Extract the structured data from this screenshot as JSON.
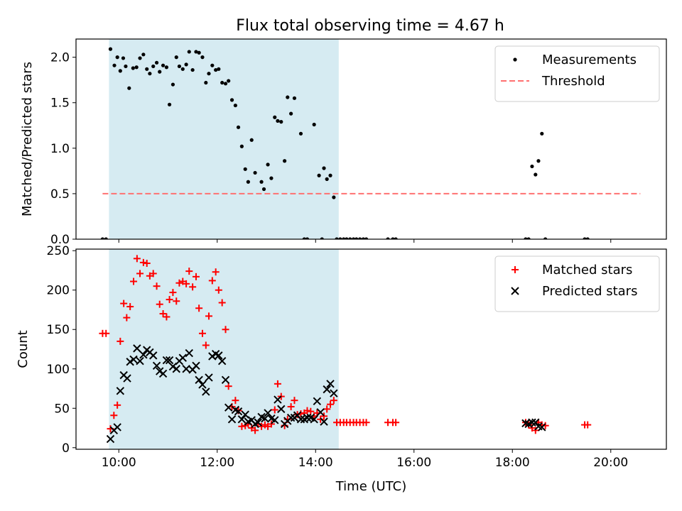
{
  "figure": {
    "title": "Flux total observing time = 4.67 h"
  },
  "chart_data": [
    {
      "type": "scatter",
      "xlabel": "",
      "ylabel": "Matched/Predicted stars",
      "xlim": [
        9.13,
        21.13
      ],
      "ylim": [
        0,
        2.2
      ],
      "yticks": [
        "0.0",
        "0.5",
        "1.0",
        "1.5",
        "2.0"
      ],
      "xticks_labels_visible": false,
      "highlight_span": {
        "x0": 9.8,
        "x1": 14.47,
        "color": "#add8e6"
      },
      "legend": "top-right",
      "threshold": {
        "name": "Threshold",
        "value": 0.5,
        "x_range": [
          9.67,
          20.6
        ],
        "color": "#ff7070",
        "style": "dashed"
      },
      "series": [
        {
          "name": "Measurements",
          "marker": "dot",
          "color": "#000000",
          "points": [
            [
              9.67,
              0
            ],
            [
              9.74,
              0
            ],
            [
              9.83,
              2.09
            ],
            [
              9.91,
              1.91
            ],
            [
              9.97,
              2.0
            ],
            [
              10.03,
              1.85
            ],
            [
              10.09,
              1.99
            ],
            [
              10.14,
              1.9
            ],
            [
              10.21,
              1.66
            ],
            [
              10.29,
              1.88
            ],
            [
              10.36,
              1.89
            ],
            [
              10.43,
              1.99
            ],
            [
              10.5,
              2.03
            ],
            [
              10.57,
              1.87
            ],
            [
              10.63,
              1.82
            ],
            [
              10.7,
              1.9
            ],
            [
              10.77,
              1.94
            ],
            [
              10.83,
              1.84
            ],
            [
              10.9,
              1.91
            ],
            [
              10.97,
              1.89
            ],
            [
              11.03,
              1.48
            ],
            [
              11.1,
              1.7
            ],
            [
              11.17,
              2.0
            ],
            [
              11.23,
              1.9
            ],
            [
              11.3,
              1.87
            ],
            [
              11.37,
              1.92
            ],
            [
              11.43,
              2.06
            ],
            [
              11.5,
              1.86
            ],
            [
              11.57,
              2.06
            ],
            [
              11.63,
              2.05
            ],
            [
              11.7,
              2.0
            ],
            [
              11.77,
              1.72
            ],
            [
              11.83,
              1.82
            ],
            [
              11.9,
              1.91
            ],
            [
              11.97,
              1.86
            ],
            [
              12.03,
              1.87
            ],
            [
              12.1,
              1.72
            ],
            [
              12.17,
              1.71
            ],
            [
              12.23,
              1.74
            ],
            [
              12.3,
              1.53
            ],
            [
              12.37,
              1.47
            ],
            [
              12.43,
              1.23
            ],
            [
              12.5,
              1.02
            ],
            [
              12.57,
              0.77
            ],
            [
              12.63,
              0.63
            ],
            [
              12.7,
              1.09
            ],
            [
              12.77,
              0.73
            ],
            [
              12.9,
              0.63
            ],
            [
              12.95,
              0.55
            ],
            [
              13.03,
              0.82
            ],
            [
              13.1,
              0.67
            ],
            [
              13.17,
              1.34
            ],
            [
              13.23,
              1.3
            ],
            [
              13.3,
              1.29
            ],
            [
              13.37,
              0.86
            ],
            [
              13.43,
              1.56
            ],
            [
              13.5,
              1.38
            ],
            [
              13.57,
              1.55
            ],
            [
              13.7,
              1.16
            ],
            [
              13.77,
              0
            ],
            [
              13.83,
              0
            ],
            [
              13.97,
              1.26
            ],
            [
              14.07,
              0.7
            ],
            [
              14.13,
              0
            ],
            [
              14.17,
              0.78
            ],
            [
              14.23,
              0.66
            ],
            [
              14.3,
              0.7
            ],
            [
              14.37,
              0.46
            ],
            [
              14.43,
              0
            ],
            [
              14.5,
              0
            ],
            [
              14.57,
              0
            ],
            [
              14.63,
              0
            ],
            [
              14.7,
              0
            ],
            [
              14.77,
              0
            ],
            [
              14.83,
              0
            ],
            [
              14.9,
              0
            ],
            [
              14.97,
              0
            ],
            [
              15.03,
              0
            ],
            [
              15.47,
              0
            ],
            [
              15.57,
              0
            ],
            [
              15.63,
              0
            ],
            [
              18.27,
              0
            ],
            [
              18.33,
              0
            ],
            [
              18.4,
              0.8
            ],
            [
              18.47,
              0.71
            ],
            [
              18.53,
              0.86
            ],
            [
              18.6,
              1.16
            ],
            [
              18.67,
              0
            ],
            [
              19.47,
              0
            ],
            [
              19.53,
              0
            ]
          ]
        }
      ]
    },
    {
      "type": "scatter",
      "xlabel": "Time (UTC)",
      "ylabel": "Count",
      "xlim": [
        9.13,
        21.13
      ],
      "ylim": [
        -2,
        252
      ],
      "xticks": [
        "10:00",
        "12:00",
        "14:00",
        "16:00",
        "18:00",
        "20:00"
      ],
      "yticks": [
        "0",
        "50",
        "100",
        "150",
        "200",
        "250"
      ],
      "highlight_span": {
        "x0": 9.8,
        "x1": 14.47,
        "color": "#add8e6"
      },
      "legend": "top-right",
      "series": [
        {
          "name": "Matched stars",
          "marker": "plus",
          "color": "#ff0000",
          "points": [
            [
              9.67,
              145
            ],
            [
              9.74,
              145
            ],
            [
              9.83,
              24
            ],
            [
              9.9,
              41
            ],
            [
              9.97,
              54
            ],
            [
              10.03,
              135
            ],
            [
              10.1,
              183
            ],
            [
              10.16,
              165
            ],
            [
              10.23,
              179
            ],
            [
              10.3,
              211
            ],
            [
              10.37,
              240
            ],
            [
              10.43,
              221
            ],
            [
              10.5,
              235
            ],
            [
              10.57,
              234
            ],
            [
              10.63,
              218
            ],
            [
              10.7,
              221
            ],
            [
              10.77,
              205
            ],
            [
              10.83,
              182
            ],
            [
              10.9,
              170
            ],
            [
              10.97,
              166
            ],
            [
              11.03,
              188
            ],
            [
              11.1,
              197
            ],
            [
              11.17,
              186
            ],
            [
              11.23,
              209
            ],
            [
              11.3,
              211
            ],
            [
              11.37,
              208
            ],
            [
              11.43,
              224
            ],
            [
              11.5,
              204
            ],
            [
              11.57,
              217
            ],
            [
              11.63,
              177
            ],
            [
              11.7,
              145
            ],
            [
              11.77,
              130
            ],
            [
              11.83,
              167
            ],
            [
              11.9,
              212
            ],
            [
              11.97,
              223
            ],
            [
              12.03,
              200
            ],
            [
              12.1,
              184
            ],
            [
              12.17,
              150
            ],
            [
              12.23,
              78
            ],
            [
              12.3,
              52
            ],
            [
              12.37,
              60
            ],
            [
              12.43,
              47
            ],
            [
              12.5,
              27
            ],
            [
              12.57,
              28
            ],
            [
              12.63,
              30
            ],
            [
              12.7,
              25
            ],
            [
              12.77,
              22
            ],
            [
              12.83,
              30
            ],
            [
              12.9,
              27
            ],
            [
              12.97,
              29
            ],
            [
              13.03,
              27
            ],
            [
              13.1,
              30
            ],
            [
              13.17,
              48
            ],
            [
              13.23,
              81
            ],
            [
              13.3,
              65
            ],
            [
              13.37,
              28
            ],
            [
              13.43,
              36
            ],
            [
              13.5,
              52
            ],
            [
              13.57,
              60
            ],
            [
              13.63,
              42
            ],
            [
              13.7,
              43
            ],
            [
              13.77,
              44
            ],
            [
              13.83,
              47
            ],
            [
              13.9,
              46
            ],
            [
              13.97,
              40
            ],
            [
              14.03,
              44
            ],
            [
              14.1,
              36
            ],
            [
              14.17,
              40
            ],
            [
              14.23,
              49
            ],
            [
              14.3,
              55
            ],
            [
              14.37,
              60
            ],
            [
              14.43,
              32
            ],
            [
              14.5,
              32
            ],
            [
              14.57,
              32
            ],
            [
              14.63,
              32
            ],
            [
              14.7,
              32
            ],
            [
              14.77,
              32
            ],
            [
              14.83,
              32
            ],
            [
              14.9,
              32
            ],
            [
              14.97,
              32
            ],
            [
              15.03,
              32
            ],
            [
              15.47,
              32
            ],
            [
              15.57,
              32
            ],
            [
              15.63,
              32
            ],
            [
              18.27,
              32
            ],
            [
              18.33,
              29
            ],
            [
              18.4,
              25
            ],
            [
              18.47,
              22
            ],
            [
              18.53,
              32
            ],
            [
              18.6,
              29
            ],
            [
              18.67,
              28
            ],
            [
              19.47,
              29
            ],
            [
              19.53,
              29
            ]
          ]
        },
        {
          "name": "Predicted stars",
          "marker": "x",
          "color": "#000000",
          "points": [
            [
              9.83,
              11
            ],
            [
              9.9,
              22
            ],
            [
              9.97,
              26
            ],
            [
              10.03,
              72
            ],
            [
              10.1,
              92
            ],
            [
              10.17,
              88
            ],
            [
              10.23,
              109
            ],
            [
              10.3,
              112
            ],
            [
              10.37,
              126
            ],
            [
              10.43,
              110
            ],
            [
              10.5,
              118
            ],
            [
              10.57,
              124
            ],
            [
              10.63,
              121
            ],
            [
              10.7,
              117
            ],
            [
              10.77,
              104
            ],
            [
              10.83,
              97
            ],
            [
              10.9,
              94
            ],
            [
              10.97,
              111
            ],
            [
              11.03,
              111
            ],
            [
              11.1,
              103
            ],
            [
              11.17,
              100
            ],
            [
              11.23,
              110
            ],
            [
              11.3,
              114
            ],
            [
              11.37,
              100
            ],
            [
              11.43,
              120
            ],
            [
              11.5,
              99
            ],
            [
              11.57,
              104
            ],
            [
              11.63,
              86
            ],
            [
              11.7,
              80
            ],
            [
              11.77,
              71
            ],
            [
              11.83,
              89
            ],
            [
              11.9,
              116
            ],
            [
              11.97,
              119
            ],
            [
              12.03,
              117
            ],
            [
              12.1,
              110
            ],
            [
              12.17,
              86
            ],
            [
              12.23,
              51
            ],
            [
              12.3,
              36
            ],
            [
              12.37,
              48
            ],
            [
              12.43,
              46
            ],
            [
              12.5,
              36
            ],
            [
              12.57,
              42
            ],
            [
              12.63,
              33
            ],
            [
              12.7,
              35
            ],
            [
              12.77,
              30
            ],
            [
              12.83,
              32
            ],
            [
              12.9,
              39
            ],
            [
              12.97,
              37
            ],
            [
              13.03,
              44
            ],
            [
              13.1,
              37
            ],
            [
              13.17,
              35
            ],
            [
              13.23,
              61
            ],
            [
              13.3,
              49
            ],
            [
              13.37,
              30
            ],
            [
              13.43,
              34
            ],
            [
              13.5,
              38
            ],
            [
              13.57,
              38
            ],
            [
              13.63,
              41
            ],
            [
              13.7,
              36
            ],
            [
              13.77,
              36
            ],
            [
              13.83,
              38
            ],
            [
              13.9,
              38
            ],
            [
              13.97,
              36
            ],
            [
              14.03,
              59
            ],
            [
              14.1,
              45
            ],
            [
              14.17,
              33
            ],
            [
              14.23,
              74
            ],
            [
              14.3,
              81
            ],
            [
              14.37,
              69
            ],
            [
              18.27,
              31
            ],
            [
              18.33,
              30
            ],
            [
              18.4,
              32
            ],
            [
              18.47,
              32
            ],
            [
              18.53,
              27
            ],
            [
              18.6,
              26
            ]
          ]
        }
      ]
    }
  ]
}
